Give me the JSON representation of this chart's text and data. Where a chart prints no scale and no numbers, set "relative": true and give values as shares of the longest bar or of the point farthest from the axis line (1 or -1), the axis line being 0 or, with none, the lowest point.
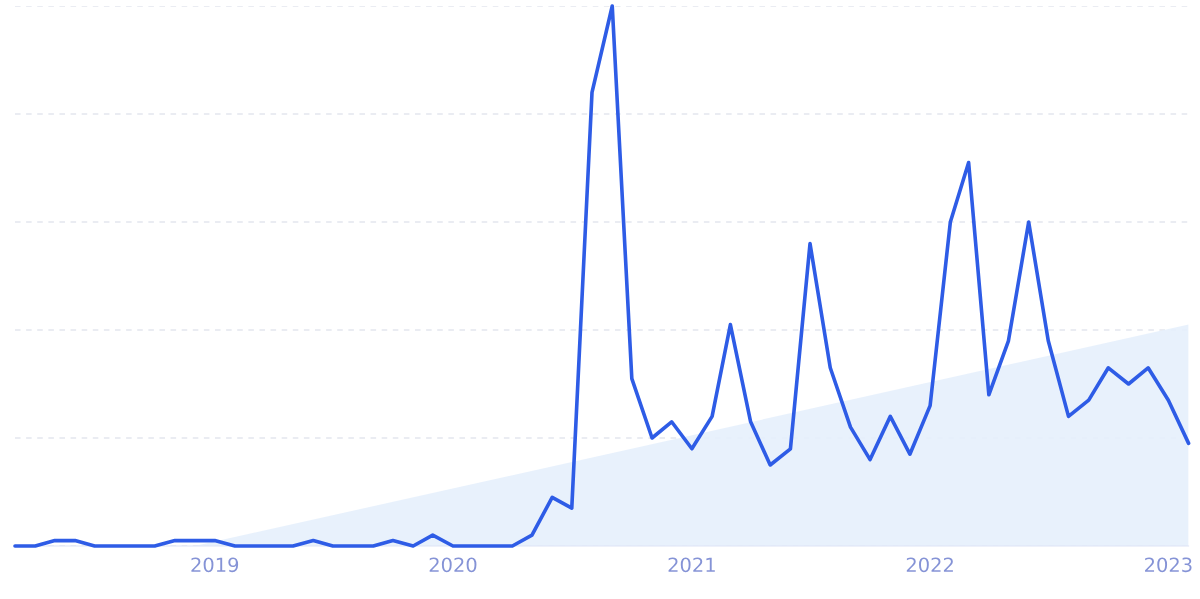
{
  "chart_data": {
    "type": "line",
    "relative": true,
    "grid": "y",
    "line_style": "solid",
    "marker": "none",
    "xlim": [
      "2018-03",
      "2023-02"
    ],
    "xticks": [
      "2019",
      "2020",
      "2021",
      "2022",
      "2023"
    ],
    "series": [
      {
        "type": "area",
        "color": "#e6effc",
        "x": [
          "2018-12",
          "2023-02"
        ],
        "values": [
          0,
          0.41
        ]
      },
      {
        "color": "#2e5ce6",
        "x": [
          "2018-03",
          "2018-04",
          "2018-05",
          "2018-06",
          "2018-07",
          "2018-08",
          "2018-09",
          "2018-10",
          "2018-11",
          "2018-12",
          "2019-01",
          "2019-02",
          "2019-03",
          "2019-04",
          "2019-05",
          "2019-06",
          "2019-07",
          "2019-08",
          "2019-09",
          "2019-10",
          "2019-11",
          "2019-12",
          "2020-01",
          "2020-02",
          "2020-03",
          "2020-04",
          "2020-05",
          "2020-06",
          "2020-07",
          "2020-08",
          "2020-09",
          "2020-10",
          "2020-11",
          "2020-12",
          "2021-01",
          "2021-02",
          "2021-03",
          "2021-04",
          "2021-05",
          "2021-06",
          "2021-07",
          "2021-08",
          "2021-09",
          "2021-10",
          "2021-11",
          "2021-12",
          "2022-01",
          "2022-02",
          "2022-03",
          "2022-04",
          "2022-05",
          "2022-06",
          "2022-07",
          "2022-08",
          "2022-09",
          "2022-10",
          "2022-11",
          "2022-12",
          "2023-01",
          "2023-02"
        ],
        "values": [
          0,
          0,
          0.01,
          0.01,
          0,
          0,
          0,
          0,
          0.01,
          0.01,
          0.01,
          0,
          0,
          0,
          0,
          0.01,
          0,
          0,
          0,
          0.01,
          0,
          0.02,
          0,
          0,
          0,
          0,
          0.02,
          0.09,
          0.07,
          0.84,
          1.0,
          0.31,
          0.2,
          0.23,
          0.18,
          0.24,
          0.41,
          0.23,
          0.15,
          0.18,
          0.56,
          0.33,
          0.22,
          0.16,
          0.24,
          0.17,
          0.26,
          0.6,
          0.71,
          0.28,
          0.38,
          0.6,
          0.38,
          0.24,
          0.27,
          0.33,
          0.3,
          0.33,
          0.27,
          0.19
        ]
      }
    ]
  }
}
